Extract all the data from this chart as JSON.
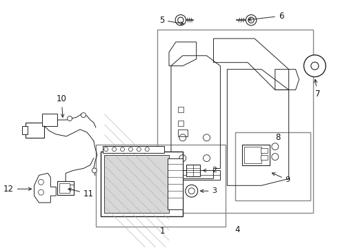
{
  "bg_color": "#ffffff",
  "line_color": "#222222",
  "label_color": "#111111",
  "figsize": [
    4.9,
    3.6
  ],
  "dpi": 100
}
